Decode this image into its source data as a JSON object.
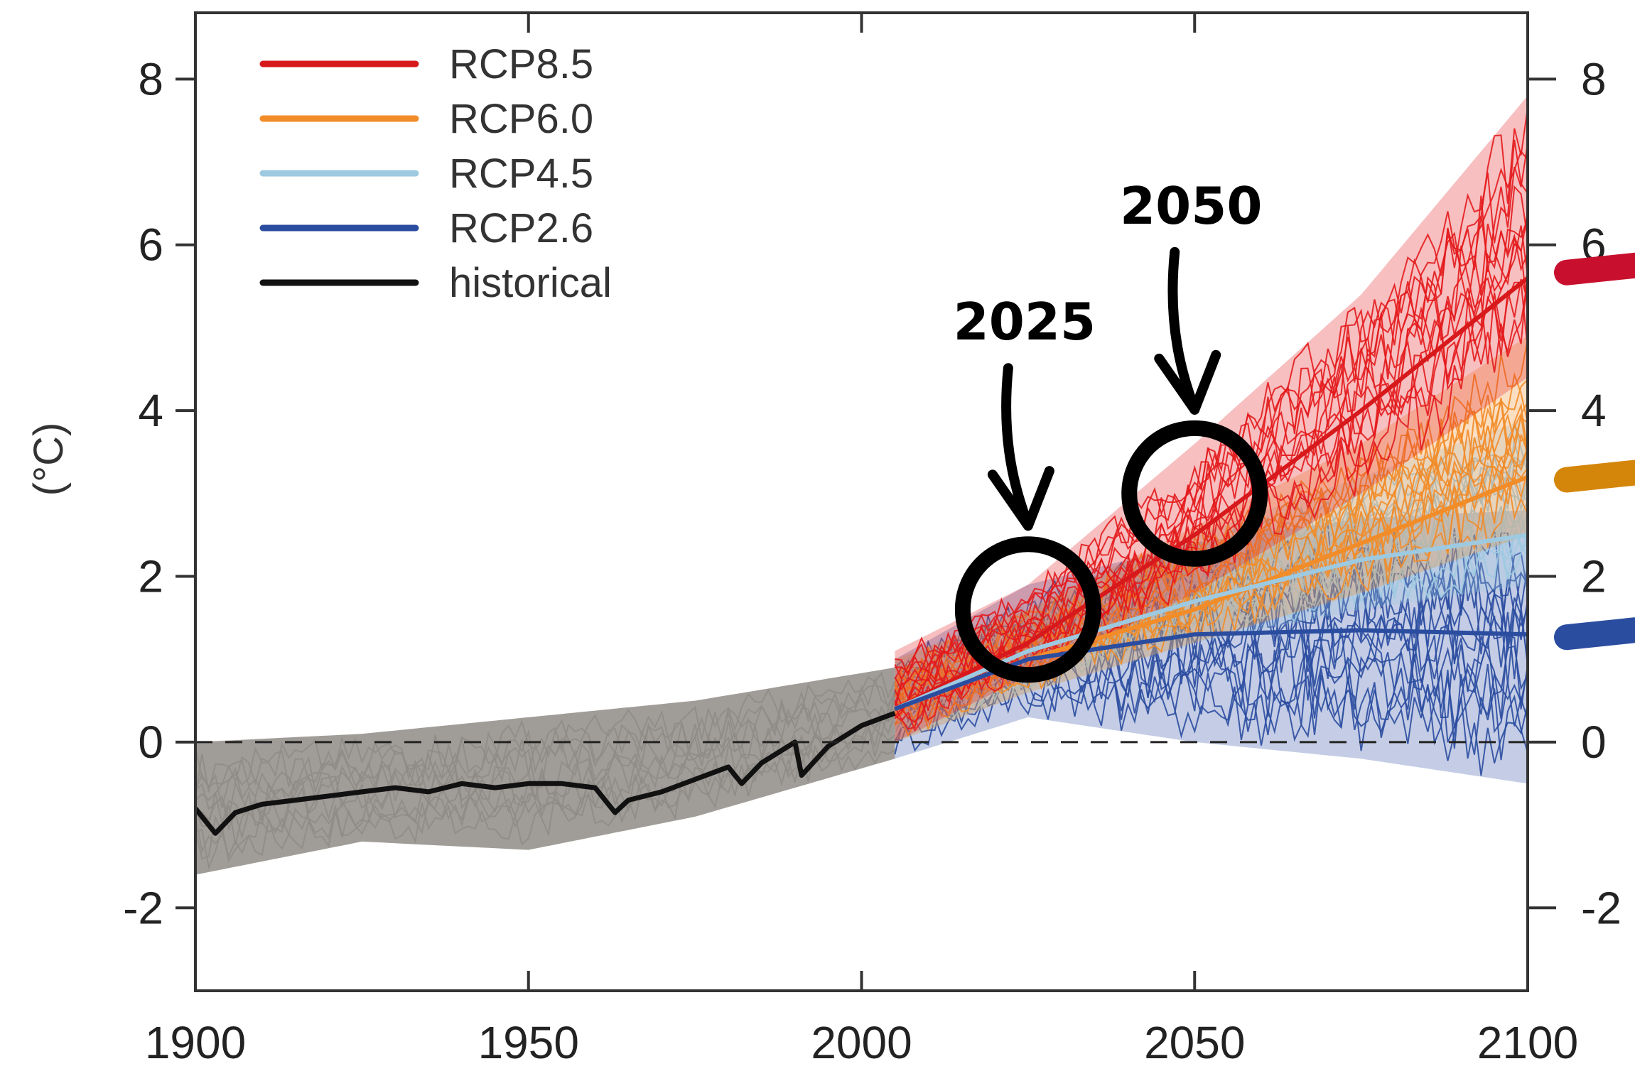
{
  "chart_data": {
    "type": "line",
    "title": "",
    "xlabel": "",
    "ylabel": "(°C)",
    "xlim": [
      1900,
      2100
    ],
    "ylim": [
      -3,
      8.8
    ],
    "x_ticks": [
      "1900",
      "1950",
      "2000",
      "2050",
      "2100"
    ],
    "y_ticks": [
      "-2",
      "0",
      "2",
      "4",
      "6",
      "8"
    ],
    "right_y_ticks": [
      "-2",
      "0",
      "2",
      "4",
      "6",
      "8"
    ],
    "zero_line": "dashed",
    "legend_position": "top-left",
    "legend": [
      {
        "label": "RCP8.5",
        "color": "#d7191c"
      },
      {
        "label": "RCP6.0",
        "color": "#f28c28"
      },
      {
        "label": "RCP4.5",
        "color": "#9ecae1"
      },
      {
        "label": "RCP2.6",
        "color": "#2b4da0"
      },
      {
        "label": "historical",
        "color": "#111111"
      }
    ],
    "series": [
      {
        "name": "historical",
        "color": "#111111",
        "x": [
          1900,
          1903,
          1906,
          1910,
          1915,
          1920,
          1925,
          1930,
          1935,
          1940,
          1945,
          1950,
          1955,
          1960,
          1963,
          1965,
          1970,
          1975,
          1980,
          1982,
          1985,
          1990,
          1991,
          1995,
          2000,
          2005
        ],
        "y": [
          -0.8,
          -1.1,
          -0.85,
          -0.75,
          -0.7,
          -0.65,
          -0.6,
          -0.55,
          -0.6,
          -0.5,
          -0.55,
          -0.5,
          -0.5,
          -0.55,
          -0.85,
          -0.7,
          -0.6,
          -0.45,
          -0.3,
          -0.5,
          -0.25,
          0.0,
          -0.4,
          -0.05,
          0.2,
          0.35
        ]
      },
      {
        "name": "RCP8.5",
        "color": "#d7191c",
        "x": [
          2005,
          2025,
          2050,
          2075,
          2100
        ],
        "y": [
          0.4,
          1.2,
          2.5,
          4.0,
          5.6
        ]
      },
      {
        "name": "RCP6.0",
        "color": "#f28c28",
        "x": [
          2005,
          2025,
          2050,
          2075,
          2100
        ],
        "y": [
          0.4,
          1.0,
          1.6,
          2.4,
          3.2
        ]
      },
      {
        "name": "RCP4.5",
        "color": "#9ecae1",
        "x": [
          2005,
          2025,
          2050,
          2075,
          2100
        ],
        "y": [
          0.4,
          1.1,
          1.7,
          2.2,
          2.5
        ]
      },
      {
        "name": "RCP2.6",
        "color": "#2b4da0",
        "x": [
          2005,
          2025,
          2050,
          2075,
          2100
        ],
        "y": [
          0.4,
          1.0,
          1.3,
          1.35,
          1.3
        ]
      }
    ],
    "spread_bands": [
      {
        "name": "historical",
        "color": "#8f8c86",
        "x": [
          1900,
          1925,
          1950,
          1975,
          2005
        ],
        "lower": [
          -1.6,
          -1.2,
          -1.3,
          -0.9,
          -0.2
        ],
        "upper": [
          0.0,
          0.1,
          0.3,
          0.5,
          0.9
        ]
      },
      {
        "name": "RCP2.6",
        "color": "#2b4da0",
        "x": [
          2005,
          2025,
          2050,
          2075,
          2100
        ],
        "lower": [
          -0.2,
          0.3,
          0.0,
          -0.2,
          -0.5
        ],
        "upper": [
          1.0,
          1.9,
          2.4,
          2.7,
          2.8
        ]
      },
      {
        "name": "RCP4.5",
        "color": "#9ecae1",
        "x": [
          2005,
          2025,
          2050,
          2075,
          2100
        ],
        "lower": [
          0.0,
          0.6,
          1.2,
          1.6,
          1.9
        ],
        "upper": [
          1.0,
          1.7,
          2.5,
          3.2,
          3.9
        ]
      },
      {
        "name": "RCP6.0",
        "color": "#f28c28",
        "x": [
          2005,
          2025,
          2050,
          2075,
          2100
        ],
        "lower": [
          0.0,
          0.6,
          1.2,
          1.8,
          2.5
        ],
        "upper": [
          1.0,
          1.6,
          2.6,
          3.6,
          4.9
        ]
      },
      {
        "name": "RCP8.5",
        "color": "#e31a1c",
        "x": [
          2005,
          2025,
          2050,
          2075,
          2100
        ],
        "lower": [
          0.0,
          0.8,
          1.8,
          3.0,
          4.4
        ],
        "upper": [
          1.1,
          1.9,
          3.6,
          5.4,
          7.8
        ]
      }
    ],
    "right_markers": [
      {
        "color": "#c8102e",
        "y": 5.7
      },
      {
        "color": "#d4860b",
        "y": 3.2
      },
      {
        "color": "#2b4da0",
        "y": 1.3
      }
    ],
    "annotations": [
      {
        "label": "2025",
        "x": 2025,
        "y": 1.6
      },
      {
        "label": "2050",
        "x": 2050,
        "y": 3.0
      }
    ]
  }
}
